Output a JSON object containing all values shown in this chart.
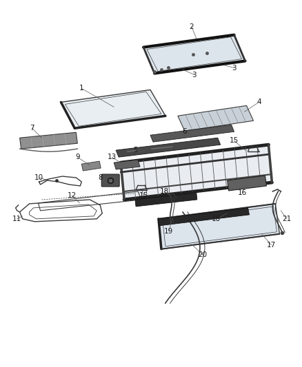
{
  "background_color": "#ffffff",
  "line_color": "#3a3a3a",
  "figsize": [
    4.38,
    5.33
  ],
  "dpi": 100
}
